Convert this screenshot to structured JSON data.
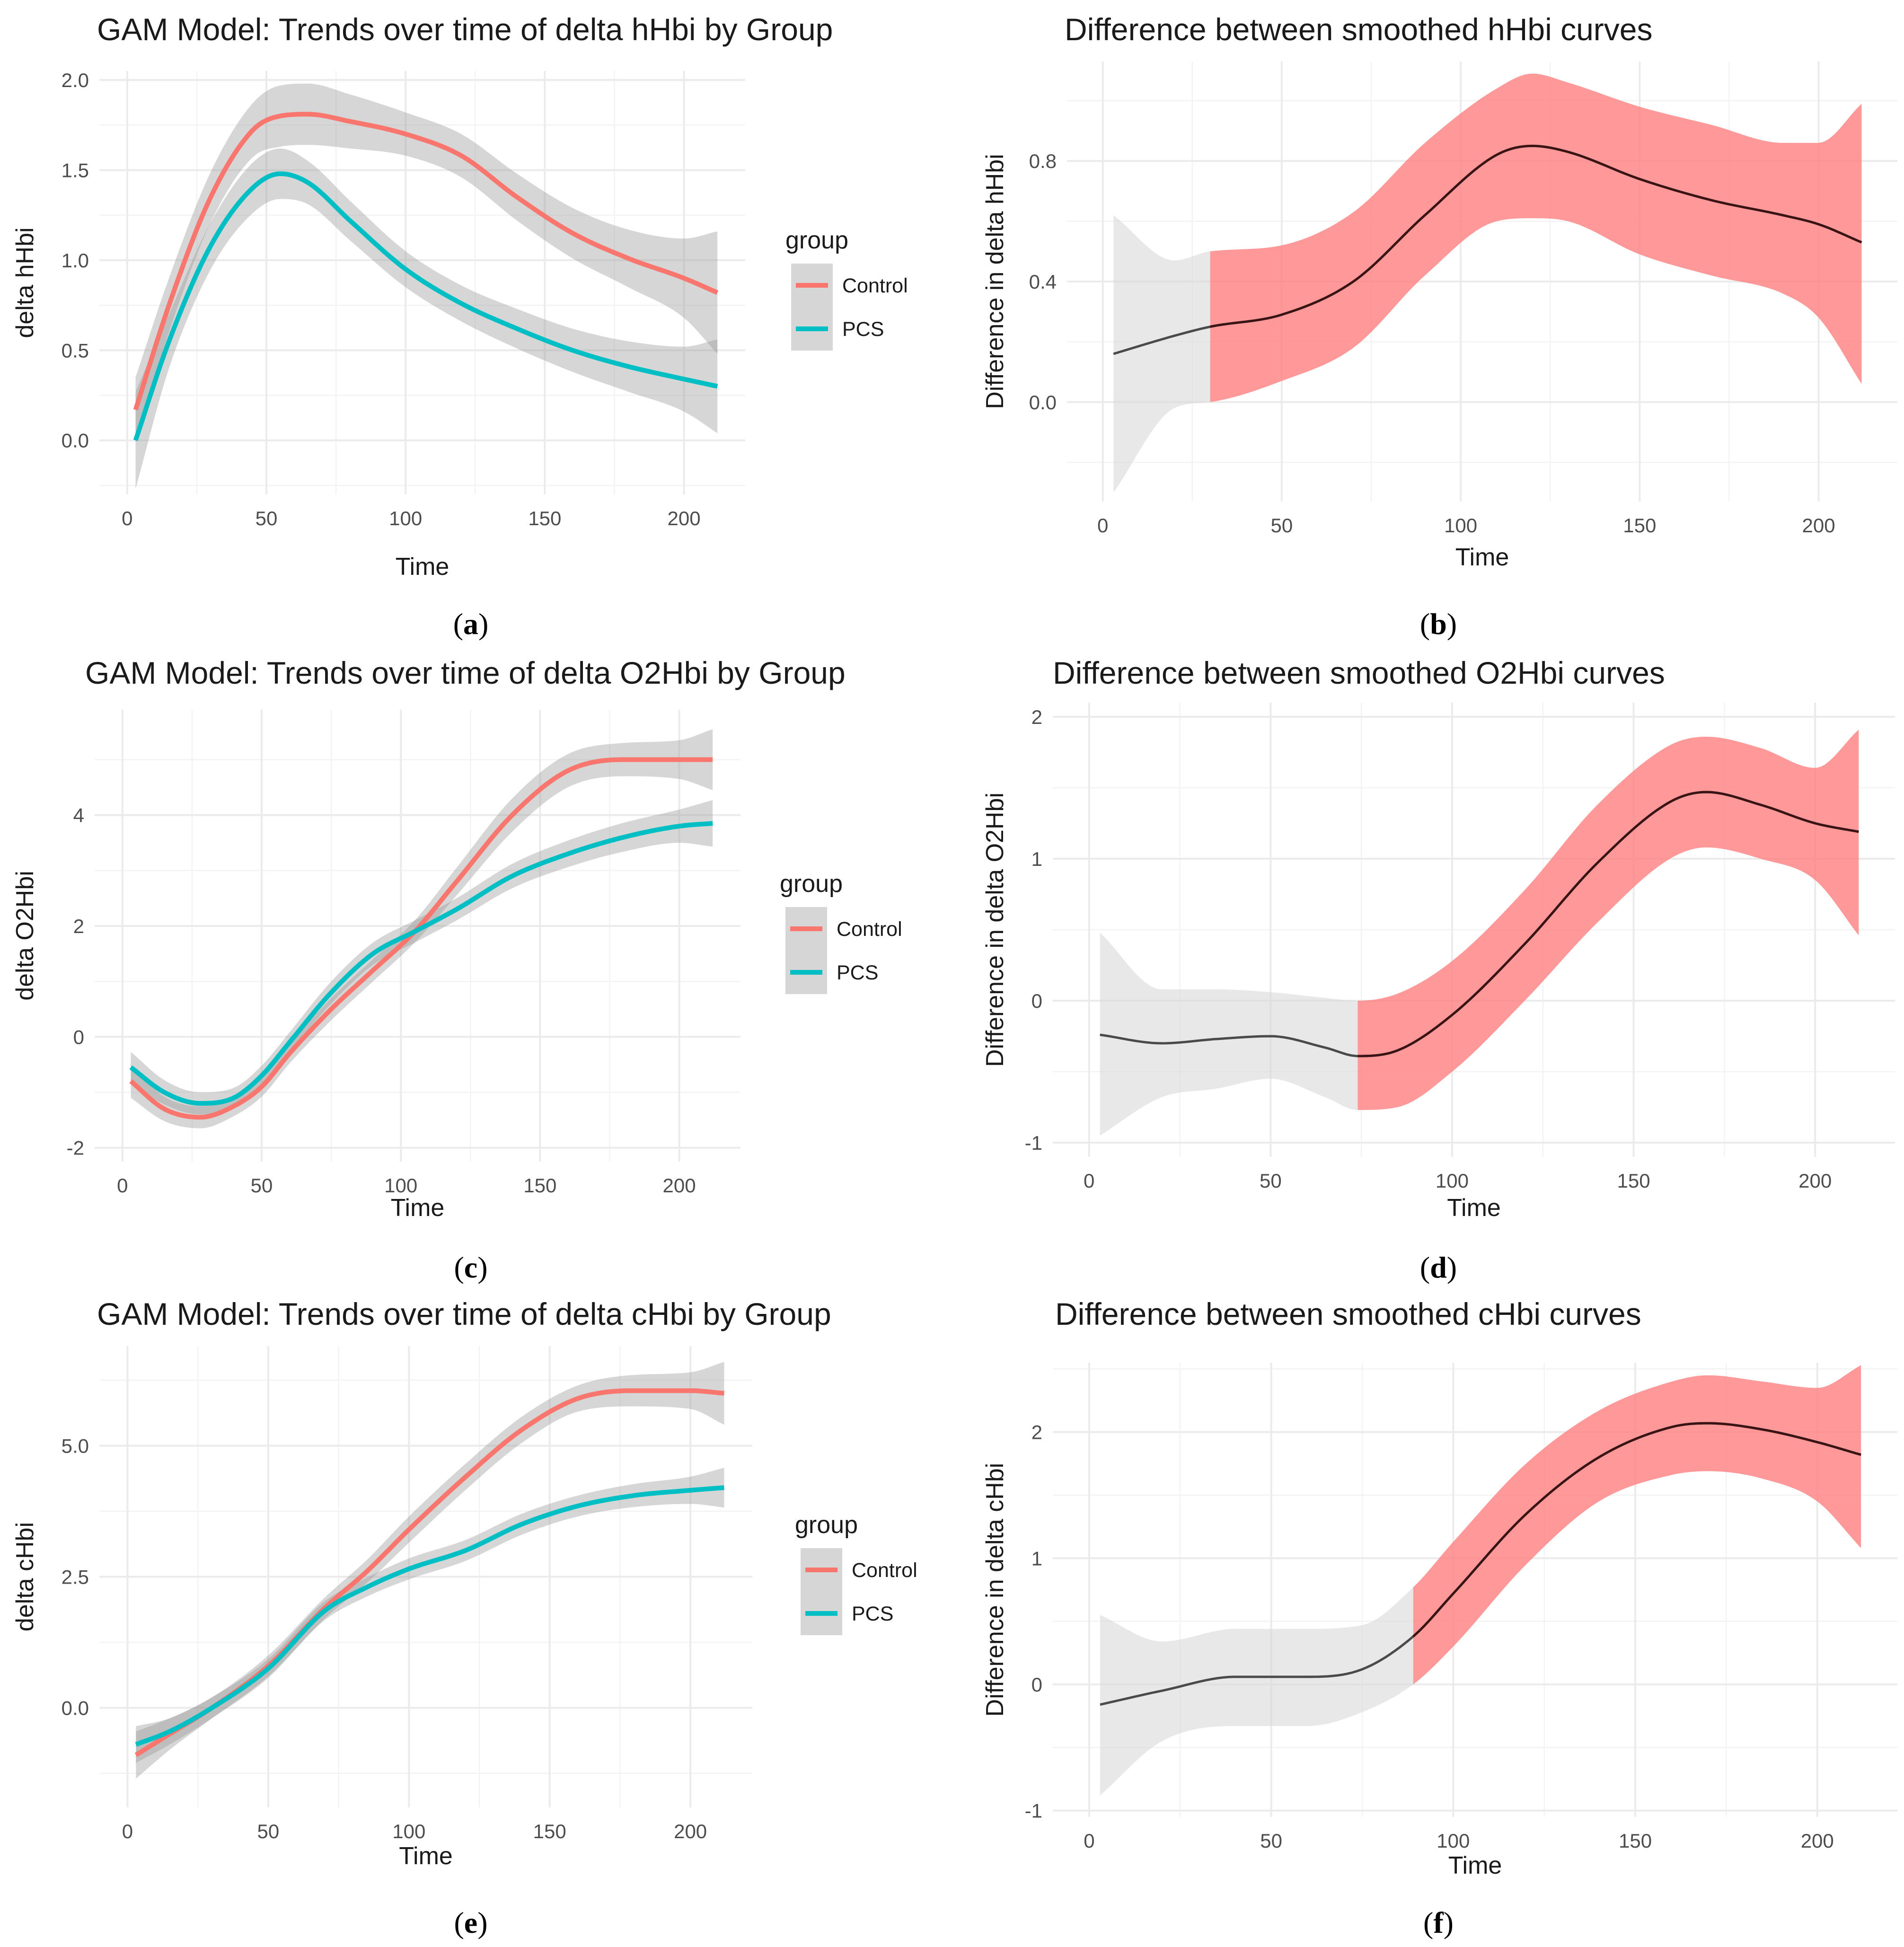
{
  "colors": {
    "control": "#F8766D",
    "pcs": "#00BFC4",
    "ci_band": "#999999",
    "sig_band": "#FF8080",
    "nonsig_band": "#D9D9D9",
    "diff_line": "#3a1414"
  },
  "chart_data": [
    {
      "id": "a",
      "type": "line",
      "caption": "(a)",
      "title": "GAM Model: Trends over time of delta hHbi by Group",
      "xlabel": "Time",
      "ylabel": "delta hHbi",
      "xlim": [
        -10,
        222
      ],
      "ylim": [
        -0.3,
        2.05
      ],
      "x_ticks": [
        0,
        50,
        100,
        150,
        200
      ],
      "y_ticks": [
        0.0,
        0.5,
        1.0,
        1.5,
        2.0
      ],
      "y_tick_labels": [
        "0.0",
        "0.5",
        "1.0",
        "1.5",
        "2.0"
      ],
      "legend": {
        "title": "group",
        "entries": [
          "Control",
          "PCS"
        ],
        "position": "right"
      },
      "series": [
        {
          "name": "Control",
          "color_key": "control",
          "x": [
            3,
            15,
            30,
            45,
            55,
            65,
            80,
            100,
            120,
            140,
            160,
            180,
            200,
            212
          ],
          "y": [
            0.17,
            0.75,
            1.35,
            1.72,
            1.8,
            1.81,
            1.77,
            1.7,
            1.58,
            1.35,
            1.15,
            1.01,
            0.9,
            0.82
          ],
          "ci_half": [
            0.18,
            0.15,
            0.14,
            0.15,
            0.17,
            0.17,
            0.15,
            0.12,
            0.12,
            0.13,
            0.14,
            0.16,
            0.22,
            0.34
          ]
        },
        {
          "name": "PCS",
          "color_key": "pcs",
          "x": [
            3,
            15,
            30,
            45,
            55,
            65,
            80,
            100,
            120,
            140,
            160,
            180,
            200,
            212
          ],
          "y": [
            0.0,
            0.55,
            1.08,
            1.4,
            1.48,
            1.43,
            1.22,
            0.95,
            0.76,
            0.62,
            0.5,
            0.41,
            0.34,
            0.3
          ],
          "ci_half": [
            0.27,
            0.15,
            0.13,
            0.14,
            0.14,
            0.12,
            0.11,
            0.1,
            0.1,
            0.11,
            0.12,
            0.14,
            0.18,
            0.26
          ]
        }
      ]
    },
    {
      "id": "b",
      "type": "line",
      "caption": "(b)",
      "title": "Difference between smoothed hHbi curves",
      "xlabel": "Time",
      "ylabel": "Difference in delta hHbi",
      "xlim": [
        -10,
        222
      ],
      "ylim": [
        -0.33,
        1.13
      ],
      "x_ticks": [
        0,
        50,
        100,
        150,
        200
      ],
      "y_ticks": [
        0.0,
        0.4,
        0.8
      ],
      "y_tick_labels": [
        "0.0",
        "0.4",
        "0.8"
      ],
      "significant_from": 30,
      "significant_to": 212,
      "x": [
        3,
        20,
        30,
        50,
        70,
        90,
        110,
        120,
        130,
        150,
        170,
        190,
        200,
        212
      ],
      "diff": [
        0.16,
        0.22,
        0.25,
        0.29,
        0.4,
        0.62,
        0.82,
        0.85,
        0.83,
        0.74,
        0.67,
        0.62,
        0.59,
        0.53
      ],
      "lower": [
        -0.3,
        -0.02,
        0.0,
        0.07,
        0.18,
        0.42,
        0.6,
        0.61,
        0.6,
        0.49,
        0.42,
        0.36,
        0.28,
        0.06
      ],
      "upper": [
        0.62,
        0.47,
        0.5,
        0.52,
        0.63,
        0.86,
        1.04,
        1.09,
        1.06,
        0.98,
        0.92,
        0.86,
        0.86,
        0.99
      ]
    },
    {
      "id": "c",
      "type": "line",
      "caption": "(c)",
      "title": "GAM Model: Trends over time of delta O2Hbi by Group",
      "xlabel": "Time",
      "ylabel": "delta O2Hbi",
      "xlim": [
        -10,
        222
      ],
      "ylim": [
        -2.25,
        5.9
      ],
      "x_ticks": [
        0,
        50,
        100,
        150,
        200
      ],
      "y_ticks": [
        -2,
        0,
        2,
        4
      ],
      "y_tick_labels": [
        "-2",
        "0",
        "2",
        "4"
      ],
      "legend": {
        "title": "group",
        "entries": [
          "Control",
          "PCS"
        ],
        "position": "right"
      },
      "series": [
        {
          "name": "Control",
          "color_key": "control",
          "x": [
            3,
            15,
            28,
            40,
            50,
            60,
            75,
            90,
            105,
            120,
            140,
            160,
            180,
            200,
            212
          ],
          "y": [
            -0.8,
            -1.3,
            -1.45,
            -1.25,
            -0.9,
            -0.3,
            0.5,
            1.2,
            1.9,
            2.8,
            4.0,
            4.8,
            5.0,
            5.0,
            5.0
          ],
          "ci_half": [
            0.3,
            0.22,
            0.2,
            0.18,
            0.18,
            0.18,
            0.2,
            0.2,
            0.2,
            0.25,
            0.3,
            0.3,
            0.3,
            0.35,
            0.55
          ]
        },
        {
          "name": "PCS",
          "color_key": "pcs",
          "x": [
            3,
            15,
            28,
            40,
            50,
            60,
            75,
            90,
            105,
            120,
            140,
            160,
            180,
            200,
            212
          ],
          "y": [
            -0.55,
            -1.0,
            -1.2,
            -1.1,
            -0.7,
            -0.1,
            0.8,
            1.5,
            1.9,
            2.3,
            2.9,
            3.3,
            3.6,
            3.8,
            3.85
          ],
          "ci_half": [
            0.28,
            0.22,
            0.2,
            0.18,
            0.18,
            0.18,
            0.2,
            0.2,
            0.2,
            0.2,
            0.22,
            0.24,
            0.26,
            0.3,
            0.42
          ]
        }
      ]
    },
    {
      "id": "d",
      "type": "line",
      "caption": "(d)",
      "title": "Difference between smoothed O2Hbi curves",
      "xlabel": "Time",
      "ylabel": "Difference in delta O2Hbi",
      "xlim": [
        -10,
        222
      ],
      "ylim": [
        -1.1,
        2.1
      ],
      "x_ticks": [
        0,
        50,
        100,
        150,
        200
      ],
      "y_ticks": [
        -1,
        0,
        1,
        2
      ],
      "y_tick_labels": [
        "-1",
        "0",
        "1",
        "2"
      ],
      "significant_from": 74,
      "significant_to": 212,
      "x": [
        3,
        20,
        35,
        50,
        65,
        74,
        85,
        100,
        120,
        140,
        160,
        170,
        185,
        200,
        212
      ],
      "diff": [
        -0.24,
        -0.3,
        -0.27,
        -0.25,
        -0.33,
        -0.39,
        -0.35,
        -0.1,
        0.4,
        0.97,
        1.4,
        1.47,
        1.38,
        1.25,
        1.19
      ],
      "lower": [
        -0.95,
        -0.68,
        -0.62,
        -0.55,
        -0.68,
        -0.77,
        -0.75,
        -0.5,
        0.0,
        0.55,
        1.0,
        1.08,
        1.0,
        0.85,
        0.46
      ],
      "upper": [
        0.48,
        0.08,
        0.08,
        0.06,
        0.02,
        0.0,
        0.05,
        0.28,
        0.78,
        1.38,
        1.8,
        1.86,
        1.78,
        1.64,
        1.91
      ]
    },
    {
      "id": "e",
      "type": "line",
      "caption": "(e)",
      "title": "GAM Model: Trends over time of delta cHbi by Group",
      "xlabel": "Time",
      "ylabel": "delta cHbi",
      "xlim": [
        -10,
        222
      ],
      "ylim": [
        -1.9,
        6.9
      ],
      "x_ticks": [
        0,
        50,
        100,
        150,
        200
      ],
      "y_ticks": [
        0.0,
        2.5,
        5.0
      ],
      "y_tick_labels": [
        "0.0",
        "2.5",
        "5.0"
      ],
      "legend": {
        "title": "group",
        "entries": [
          "Control",
          "PCS"
        ],
        "position": "right"
      },
      "series": [
        {
          "name": "Control",
          "color_key": "control",
          "x": [
            3,
            15,
            30,
            50,
            70,
            85,
            100,
            120,
            140,
            160,
            180,
            200,
            212
          ],
          "y": [
            -0.9,
            -0.5,
            0.0,
            0.8,
            1.9,
            2.6,
            3.4,
            4.4,
            5.3,
            5.9,
            6.05,
            6.05,
            6.0
          ],
          "ci_half": [
            0.45,
            0.3,
            0.2,
            0.2,
            0.2,
            0.22,
            0.25,
            0.25,
            0.25,
            0.25,
            0.3,
            0.35,
            0.6
          ]
        },
        {
          "name": "PCS",
          "color_key": "pcs",
          "x": [
            3,
            15,
            30,
            50,
            70,
            85,
            100,
            120,
            140,
            160,
            180,
            200,
            212
          ],
          "y": [
            -0.7,
            -0.45,
            0.0,
            0.75,
            1.85,
            2.3,
            2.65,
            3.0,
            3.5,
            3.85,
            4.05,
            4.15,
            4.2
          ],
          "ci_half": [
            0.35,
            0.25,
            0.2,
            0.18,
            0.18,
            0.18,
            0.2,
            0.2,
            0.2,
            0.2,
            0.22,
            0.26,
            0.38
          ]
        }
      ]
    },
    {
      "id": "f",
      "type": "line",
      "caption": "(f)",
      "title": "Difference between smoothed cHbi curves",
      "xlabel": "Time",
      "ylabel": "Difference in delta cHbi",
      "xlim": [
        -10,
        222
      ],
      "ylim": [
        -1.05,
        2.55
      ],
      "x_ticks": [
        0,
        50,
        100,
        150,
        200
      ],
      "y_ticks": [
        -1,
        0,
        1,
        2
      ],
      "y_tick_labels": [
        "-1",
        "0",
        "1",
        "2"
      ],
      "significant_from": 89,
      "significant_to": 212,
      "x": [
        3,
        20,
        40,
        60,
        75,
        89,
        100,
        120,
        140,
        160,
        170,
        185,
        200,
        212
      ],
      "diff": [
        -0.16,
        -0.05,
        0.06,
        0.06,
        0.12,
        0.38,
        0.72,
        1.35,
        1.8,
        2.04,
        2.07,
        2.02,
        1.92,
        1.82
      ],
      "lower": [
        -0.88,
        -0.45,
        -0.33,
        -0.33,
        -0.22,
        0.0,
        0.3,
        0.95,
        1.45,
        1.66,
        1.69,
        1.63,
        1.45,
        1.08
      ],
      "upper": [
        0.55,
        0.34,
        0.44,
        0.44,
        0.47,
        0.77,
        1.13,
        1.75,
        2.17,
        2.4,
        2.45,
        2.4,
        2.35,
        2.53
      ]
    }
  ]
}
